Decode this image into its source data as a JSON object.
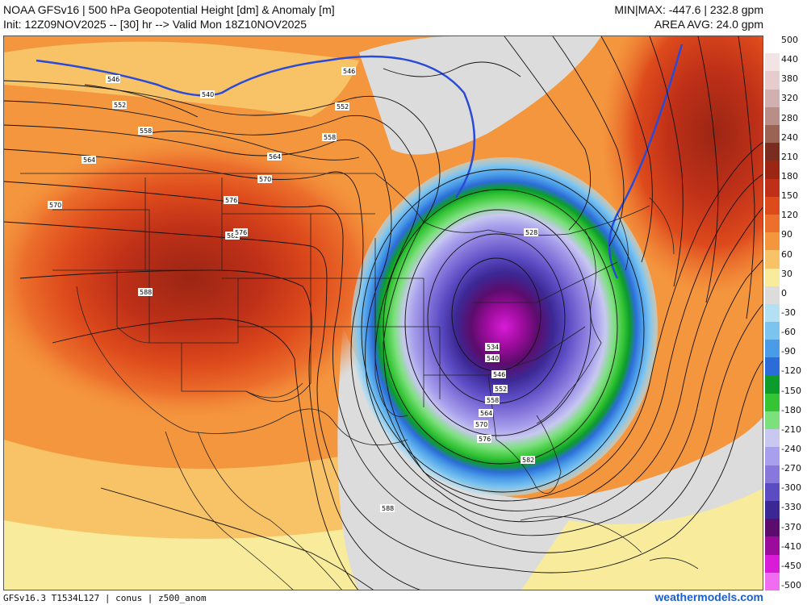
{
  "header": {
    "line1_left": "NOAA GFSv16 |  500 hPa Geopotential Height [dm] & Anomaly [m]",
    "line2_left": "Init: 12Z09NOV2025 -- [30] hr --> Valid Mon 18Z10NOV2025",
    "line1_right": "MIN|MAX: -447.6 | 232.8 gpm",
    "line2_right": "AREA AVG: 24.0 gpm"
  },
  "footer": {
    "left": "GFSv16.3 T1534L127 | conus | z500_anom",
    "right": "weathermodels.com"
  },
  "colorbar": {
    "labels": [
      "500",
      "440",
      "380",
      "320",
      "280",
      "240",
      "210",
      "180",
      "150",
      "120",
      "90",
      "60",
      "30",
      "0",
      "-30",
      "-60",
      "-90",
      "-120",
      "-150",
      "-180",
      "-210",
      "-240",
      "-270",
      "-300",
      "-330",
      "-370",
      "-410",
      "-450",
      "-500"
    ],
    "colors": [
      "#ffffff",
      "#f2e4e4",
      "#e6cccc",
      "#d2b0b0",
      "#b88e86",
      "#9b6354",
      "#7a2c1e",
      "#9b2614",
      "#bf3018",
      "#dd4a1c",
      "#ec6f2c",
      "#f4963e",
      "#f8c266",
      "#f8ec9c",
      "#dcdcdc",
      "#b4e0f4",
      "#7cc4f0",
      "#4a9ce8",
      "#2c6cd8",
      "#0c9c2c",
      "#34c434",
      "#7ce07c",
      "#c8c8f0",
      "#a8a0ec",
      "#8878dc",
      "#5c4cc4",
      "#3c2894",
      "#5c0c6c",
      "#9c0c9c",
      "#d81cd8",
      "#f06cf0"
    ]
  },
  "map": {
    "contour_labels": [
      "546",
      "552",
      "558",
      "564",
      "570",
      "576",
      "582",
      "588",
      "546",
      "552",
      "558",
      "564",
      "570",
      "576",
      "528",
      "534",
      "540",
      "546",
      "552",
      "558",
      "564",
      "570",
      "576",
      "582",
      "588",
      "540"
    ]
  }
}
